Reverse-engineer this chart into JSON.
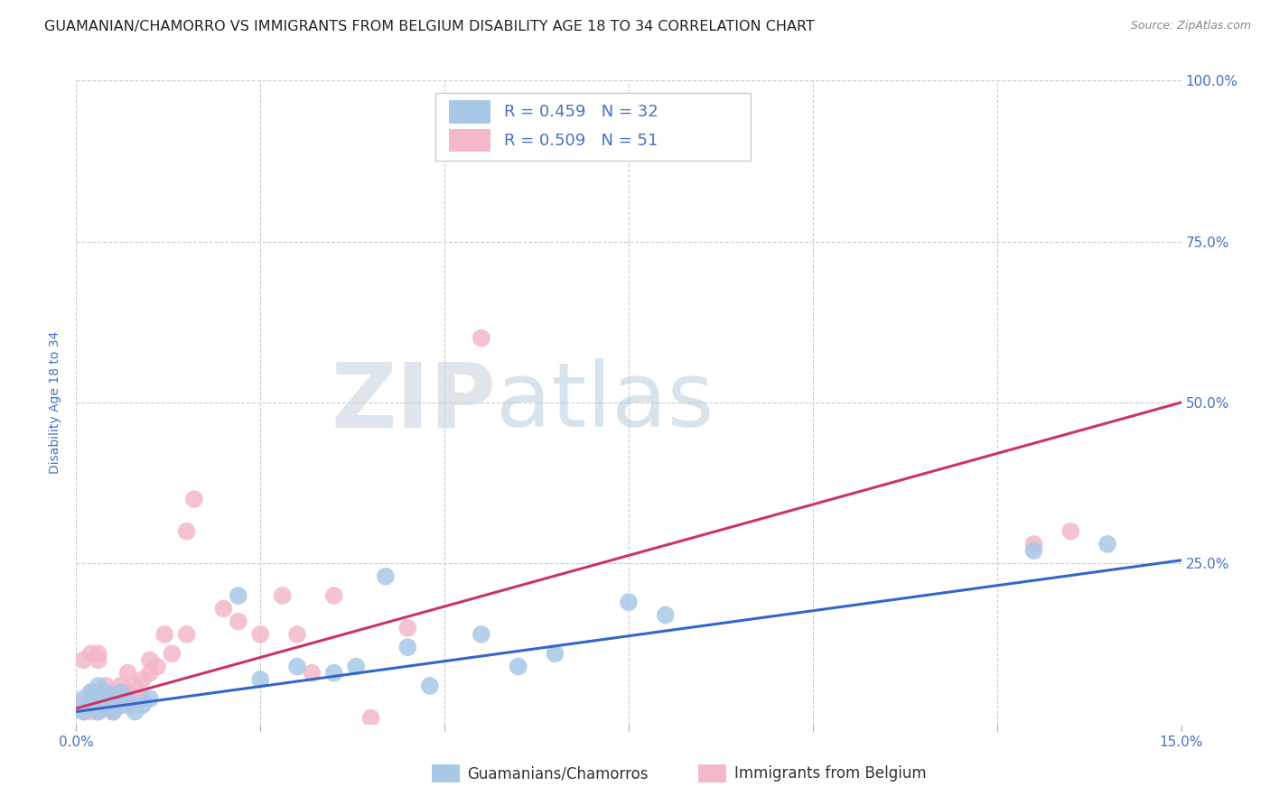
{
  "title": "GUAMANIAN/CHAMORRO VS IMMIGRANTS FROM BELGIUM DISABILITY AGE 18 TO 34 CORRELATION CHART",
  "source": "Source: ZipAtlas.com",
  "ylabel": "Disability Age 18 to 34",
  "xlim": [
    0.0,
    0.15
  ],
  "ylim": [
    0.0,
    1.0
  ],
  "xticks": [
    0.0,
    0.025,
    0.05,
    0.075,
    0.1,
    0.125,
    0.15
  ],
  "xtick_labels": [
    "0.0%",
    "",
    "",
    "",
    "",
    "",
    "15.0%"
  ],
  "yticks": [
    0.0,
    0.25,
    0.5,
    0.75,
    1.0
  ],
  "ytick_labels": [
    "",
    "25.0%",
    "50.0%",
    "75.0%",
    "100.0%"
  ],
  "legend_blue_R": "R = 0.459",
  "legend_blue_N": "N = 32",
  "legend_pink_R": "R = 0.509",
  "legend_pink_N": "N = 51",
  "legend_blue_label": "Guamanians/Chamorros",
  "legend_pink_label": "Immigrants from Belgium",
  "blue_color": "#a8c8e8",
  "pink_color": "#f4b8c8",
  "blue_line_color": "#3366cc",
  "pink_line_color": "#cc3366",
  "watermark_zip_color": "#c8d8e8",
  "watermark_atlas_color": "#b8cce0",
  "blue_scatter_x": [
    0.001,
    0.001,
    0.002,
    0.002,
    0.003,
    0.003,
    0.003,
    0.004,
    0.004,
    0.005,
    0.005,
    0.006,
    0.006,
    0.007,
    0.008,
    0.009,
    0.01,
    0.022,
    0.025,
    0.03,
    0.035,
    0.038,
    0.042,
    0.045,
    0.048,
    0.055,
    0.06,
    0.065,
    0.075,
    0.08,
    0.13,
    0.14
  ],
  "blue_scatter_y": [
    0.02,
    0.04,
    0.03,
    0.05,
    0.02,
    0.04,
    0.06,
    0.03,
    0.05,
    0.04,
    0.02,
    0.03,
    0.05,
    0.04,
    0.02,
    0.03,
    0.04,
    0.2,
    0.07,
    0.09,
    0.08,
    0.09,
    0.23,
    0.12,
    0.06,
    0.14,
    0.09,
    0.11,
    0.19,
    0.17,
    0.27,
    0.28
  ],
  "pink_scatter_x": [
    0.001,
    0.001,
    0.001,
    0.002,
    0.002,
    0.002,
    0.002,
    0.003,
    0.003,
    0.003,
    0.003,
    0.003,
    0.004,
    0.004,
    0.004,
    0.004,
    0.005,
    0.005,
    0.005,
    0.005,
    0.006,
    0.006,
    0.006,
    0.006,
    0.007,
    0.007,
    0.007,
    0.008,
    0.008,
    0.009,
    0.009,
    0.01,
    0.01,
    0.011,
    0.012,
    0.013,
    0.015,
    0.015,
    0.016,
    0.02,
    0.022,
    0.025,
    0.028,
    0.03,
    0.032,
    0.035,
    0.04,
    0.045,
    0.055,
    0.13,
    0.135
  ],
  "pink_scatter_y": [
    0.02,
    0.03,
    0.1,
    0.04,
    0.05,
    0.02,
    0.11,
    0.03,
    0.02,
    0.04,
    0.1,
    0.11,
    0.03,
    0.04,
    0.05,
    0.06,
    0.02,
    0.02,
    0.03,
    0.04,
    0.03,
    0.04,
    0.05,
    0.06,
    0.03,
    0.05,
    0.08,
    0.04,
    0.06,
    0.04,
    0.07,
    0.08,
    0.1,
    0.09,
    0.14,
    0.11,
    0.3,
    0.14,
    0.35,
    0.18,
    0.16,
    0.14,
    0.2,
    0.14,
    0.08,
    0.2,
    0.01,
    0.15,
    0.6,
    0.28,
    0.3
  ],
  "blue_line_x0": 0.0,
  "blue_line_y0": 0.02,
  "blue_line_x1": 0.15,
  "blue_line_y1": 0.255,
  "pink_line_x0": 0.0,
  "pink_line_y0": 0.025,
  "pink_line_x1": 0.15,
  "pink_line_y1": 0.5,
  "title_fontsize": 11.5,
  "axis_label_fontsize": 10,
  "tick_fontsize": 11,
  "legend_fontsize": 13,
  "source_fontsize": 9,
  "background_color": "#ffffff",
  "grid_color": "#cccccc",
  "title_color": "#222222",
  "label_color": "#4472c4",
  "tick_color": "#4472c4"
}
